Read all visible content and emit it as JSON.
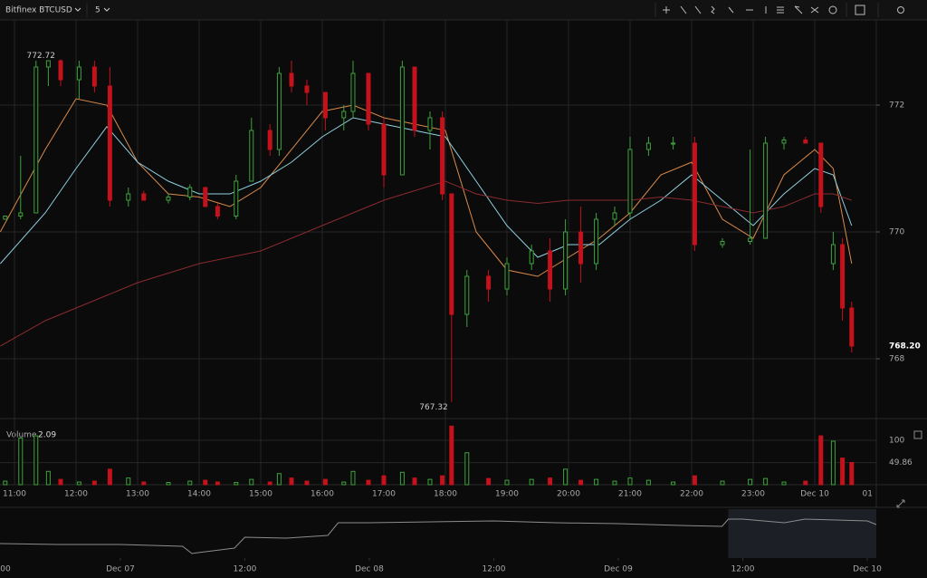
{
  "toolbar": {
    "symbol": "Bitfinex BTCUSD",
    "interval": "5"
  },
  "chart_data": [
    {
      "type": "candlestick",
      "x": [
        10.85,
        11.1,
        11.35,
        11.55,
        11.75,
        12.05,
        12.3,
        12.55,
        12.85,
        13.1,
        13.5,
        13.85,
        14.1,
        14.3,
        14.6,
        14.85,
        15.15,
        15.3,
        15.5,
        15.75,
        16.05,
        16.35,
        16.5,
        16.75,
        17.0,
        17.3,
        17.5,
        17.75,
        17.95,
        18.1,
        18.35,
        18.7,
        19.0,
        19.4,
        19.7,
        19.95,
        20.2,
        20.45,
        20.75,
        21.0,
        21.3,
        21.7,
        22.05,
        22.5,
        22.95,
        23.2,
        23.5,
        23.85,
        24.1,
        24.3,
        24.45,
        24.6
      ],
      "open": [
        770.2,
        770.25,
        770.3,
        772.6,
        772.7,
        772.4,
        772.6,
        772.3,
        770.5,
        770.6,
        770.5,
        770.55,
        770.7,
        770.4,
        770.25,
        770.8,
        771.6,
        771.3,
        772.5,
        772.3,
        772.2,
        771.8,
        771.9,
        772.5,
        771.7,
        770.9,
        772.6,
        771.6,
        771.8,
        770.6,
        768.7,
        769.3,
        769.1,
        769.5,
        769.7,
        769.1,
        770.0,
        769.5,
        770.2,
        770.3,
        771.3,
        771.4,
        771.4,
        769.8,
        769.85,
        769.9,
        771.4,
        771.45,
        771.4,
        769.5,
        769.8,
        768.8
      ],
      "high": [
        770.25,
        771.2,
        772.7,
        772.7,
        772.72,
        772.7,
        772.7,
        772.6,
        770.7,
        770.65,
        770.6,
        770.75,
        770.7,
        770.45,
        770.9,
        771.8,
        771.7,
        772.6,
        772.7,
        772.4,
        772.2,
        772.0,
        772.7,
        772.5,
        771.8,
        772.7,
        772.6,
        771.9,
        771.9,
        770.6,
        769.4,
        769.4,
        769.6,
        769.8,
        769.9,
        770.2,
        770.4,
        770.3,
        770.4,
        771.5,
        771.5,
        771.5,
        771.5,
        769.9,
        771.3,
        771.5,
        771.5,
        771.5,
        771.4,
        770.0,
        769.9,
        768.9
      ],
      "low": [
        770.2,
        770.2,
        770.3,
        772.3,
        772.3,
        772.1,
        772.2,
        770.4,
        770.4,
        770.5,
        770.45,
        770.5,
        770.4,
        770.2,
        770.2,
        770.8,
        771.2,
        771.2,
        772.2,
        772.0,
        771.6,
        771.6,
        771.8,
        771.6,
        770.7,
        770.9,
        771.5,
        771.3,
        770.5,
        767.32,
        768.5,
        768.9,
        769.0,
        769.4,
        768.9,
        769.0,
        769.2,
        769.4,
        770.1,
        770.2,
        771.2,
        771.3,
        769.7,
        769.75,
        769.8,
        769.9,
        771.3,
        771.4,
        770.3,
        769.4,
        768.6,
        768.1
      ],
      "close": [
        770.25,
        770.3,
        772.6,
        772.7,
        772.4,
        772.6,
        772.3,
        770.5,
        770.6,
        770.5,
        770.55,
        770.7,
        770.4,
        770.25,
        770.8,
        771.6,
        771.3,
        772.5,
        772.3,
        772.2,
        771.8,
        771.9,
        772.5,
        771.7,
        770.9,
        772.6,
        771.6,
        771.8,
        770.6,
        768.7,
        769.3,
        769.1,
        769.5,
        769.7,
        769.1,
        770.0,
        769.5,
        770.2,
        770.3,
        771.3,
        771.4,
        771.4,
        769.8,
        769.85,
        769.9,
        771.4,
        771.45,
        771.4,
        770.4,
        769.8,
        768.8,
        768.2
      ],
      "up_color": "#3da33d",
      "down_color": "#c4121c",
      "xlim": [
        10.765,
        25.0
      ],
      "xticks": [
        {
          "value": 11,
          "label": "11:00"
        },
        {
          "value": 12,
          "label": "12:00"
        },
        {
          "value": 13,
          "label": "13:00"
        },
        {
          "value": 14,
          "label": "14:00"
        },
        {
          "value": 15,
          "label": "15:00"
        },
        {
          "value": 16,
          "label": "16:00"
        },
        {
          "value": 17,
          "label": "17:00"
        },
        {
          "value": 18,
          "label": "18:00"
        },
        {
          "value": 19,
          "label": "19:00"
        },
        {
          "value": 20,
          "label": "20:00"
        },
        {
          "value": 21,
          "label": "21:00"
        },
        {
          "value": 22,
          "label": "22:00"
        },
        {
          "value": 23,
          "label": "23:00"
        },
        {
          "value": 24,
          "label": "Dec 10"
        },
        {
          "value": 25,
          "label": "01"
        }
      ],
      "ylim": [
        767.057,
        773.343
      ],
      "yticks": [
        768,
        770,
        772
      ],
      "grid": true,
      "last_price": {
        "value": 768.2,
        "label": "768.20"
      },
      "lines": {
        "x": [
          10.77,
          11.5,
          12.0,
          12.5,
          13.0,
          13.5,
          14.0,
          14.5,
          15.0,
          15.5,
          16.0,
          16.5,
          17.0,
          17.5,
          18.0,
          18.5,
          19.0,
          19.5,
          20.0,
          20.5,
          21.0,
          21.5,
          22.0,
          22.5,
          23.0,
          23.5,
          24.0,
          24.3,
          24.6
        ],
        "series": [
          {
            "color": "#d98a4a",
            "values": [
              770.0,
              771.3,
              772.1,
              772.0,
              771.1,
              770.6,
              770.55,
              770.4,
              770.7,
              771.3,
              771.9,
              772.0,
              771.8,
              771.7,
              771.6,
              770.0,
              769.4,
              769.3,
              769.6,
              769.9,
              770.3,
              770.9,
              771.1,
              770.2,
              769.9,
              770.9,
              771.3,
              771.0,
              769.5
            ]
          },
          {
            "color": "#8fd0e0",
            "values": [
              769.5,
              770.3,
              771.0,
              771.66,
              771.1,
              770.8,
              770.6,
              770.6,
              770.8,
              771.1,
              771.5,
              771.8,
              771.7,
              771.6,
              771.5,
              770.8,
              770.1,
              769.6,
              769.8,
              769.8,
              770.2,
              770.5,
              770.9,
              770.5,
              770.1,
              770.6,
              771.0,
              770.9,
              770.1
            ]
          },
          {
            "color": "#8a2a30",
            "values": [
              768.2,
              768.6,
              768.8,
              769.0,
              769.2,
              769.35,
              769.5,
              769.6,
              769.7,
              769.9,
              770.1,
              770.3,
              770.5,
              770.65,
              770.8,
              770.6,
              770.5,
              770.45,
              770.5,
              770.5,
              770.5,
              770.55,
              770.5,
              770.4,
              770.3,
              770.4,
              770.6,
              770.6,
              770.5
            ]
          }
        ]
      },
      "volume": {
        "title": "Volume",
        "last": 2.09,
        "values": [
          8,
          105,
          110,
          30,
          12,
          6,
          8,
          35,
          15,
          6,
          5,
          8,
          10,
          6,
          5,
          12,
          6,
          25,
          15,
          8,
          12,
          6,
          30,
          10,
          20,
          28,
          15,
          12,
          20,
          132,
          72,
          14,
          10,
          12,
          15,
          35,
          10,
          12,
          8,
          15,
          10,
          6,
          20,
          8,
          12,
          14,
          6,
          8,
          110,
          98,
          60,
          50
        ],
        "ylim": [
          0,
          132.7
        ],
        "yticks": [
          100,
          49.86
        ]
      }
    },
    {
      "type": "line",
      "x": [
        12.4,
        18,
        24,
        30,
        30.9,
        31.5,
        35,
        36,
        40,
        44,
        45,
        48,
        54,
        60,
        66,
        72,
        78,
        82,
        82.6,
        84,
        88,
        90,
        96,
        96.87
      ],
      "values": [
        761,
        760.6,
        760.6,
        759.8,
        756.6,
        757,
        759,
        763.8,
        763.4,
        764.6,
        770.2,
        770.2,
        770.6,
        771,
        770.2,
        769.8,
        769,
        768.6,
        771.8,
        771.8,
        770.2,
        771.8,
        771,
        769.4
      ],
      "xlim": [
        12.4,
        96.87
      ],
      "ylim": [
        755,
        775
      ],
      "xticks": [
        {
          "value": 12,
          "label": "00"
        },
        {
          "value": 24,
          "label": "Dec 07"
        },
        {
          "value": 36,
          "label": "12:00"
        },
        {
          "value": 48,
          "label": "Dec 08"
        },
        {
          "value": 60,
          "label": "12:00"
        },
        {
          "value": 72,
          "label": "Dec 09"
        },
        {
          "value": 84,
          "label": "12:00"
        },
        {
          "value": 96,
          "label": "Dec 10"
        }
      ],
      "selection": [
        82.6,
        96.87
      ],
      "color": "#8c8c8c"
    }
  ]
}
